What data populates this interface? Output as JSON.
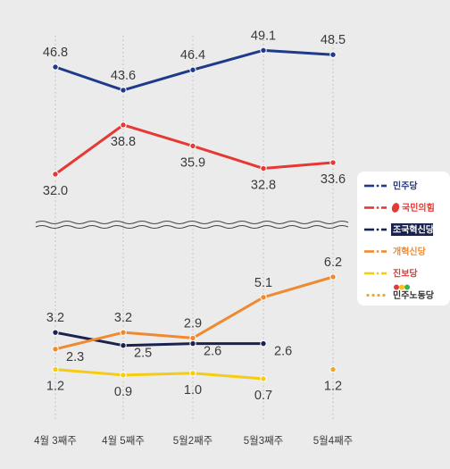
{
  "chart_data": {
    "type": "line",
    "categories": [
      "4월 3째주",
      "4월 5째주",
      "5월2째주",
      "5월3째주",
      "5월4째주"
    ],
    "axis_break": true,
    "grid": "vertical dotted lines",
    "legend_position": "right",
    "series": [
      {
        "name": "민주당",
        "color": "#1f3a8a",
        "values": [
          46.8,
          43.6,
          46.4,
          49.1,
          48.5
        ],
        "labels": [
          "46.8",
          "43.6",
          "46.4",
          "49.1",
          "48.5"
        ],
        "label_pos": [
          "above",
          "above",
          "above",
          "above",
          "above"
        ]
      },
      {
        "name": "국민의힘",
        "color": "#e53935",
        "values": [
          32.0,
          38.8,
          35.9,
          32.8,
          33.6
        ],
        "labels": [
          "32.0",
          "38.8",
          "35.9",
          "32.8",
          "33.6"
        ],
        "label_pos": [
          "below",
          "below",
          "below",
          "below",
          "below"
        ]
      },
      {
        "name": "조국혁신당",
        "color": "#1a2350",
        "values": [
          3.2,
          2.5,
          2.6,
          2.6,
          null
        ],
        "labels": [
          "3.2",
          "2.5",
          "2.6",
          "2.6",
          null
        ],
        "label_pos": [
          "above",
          "right",
          "right",
          "right",
          null
        ]
      },
      {
        "name": "개혁신당",
        "color": "#f08a30",
        "values": [
          2.3,
          3.2,
          2.9,
          5.1,
          6.2
        ],
        "labels": [
          "2.3",
          "3.2",
          "2.9",
          "5.1",
          "6.2"
        ],
        "label_pos": [
          "right",
          "above",
          "above",
          "above",
          "above"
        ]
      },
      {
        "name": "진보당",
        "color": "#f6cc10",
        "values": [
          1.2,
          0.9,
          1.0,
          0.7,
          null
        ],
        "labels": [
          "1.2",
          "0.9",
          "1.0",
          "0.7",
          null
        ],
        "label_pos": [
          "below",
          "below",
          "below",
          "below",
          null
        ]
      },
      {
        "name": "민주노동당",
        "color": "#f5a623",
        "values": [
          null,
          null,
          null,
          null,
          1.2
        ],
        "labels": [
          null,
          null,
          null,
          null,
          "1.2"
        ],
        "label_pos": [
          null,
          null,
          null,
          null,
          "below"
        ]
      }
    ]
  },
  "legend": [
    {
      "label": "민주당",
      "color": "#1f3a8a",
      "style": "dashdot",
      "label_color": "#1f3a8a",
      "icon": "text-logo"
    },
    {
      "label": "국민의힘",
      "color": "#e53935",
      "style": "dashdot",
      "label_color": "#e53935",
      "icon": "red-blob-logo"
    },
    {
      "label": "조국혁신당",
      "color": "#1a2350",
      "style": "dashdot",
      "label_color": "#ffffff",
      "icon": "navy-box-logo"
    },
    {
      "label": "개혁신당",
      "color": "#f08a30",
      "style": "dashdot",
      "label_color": "#f08a30",
      "icon": "text-logo"
    },
    {
      "label": "진보당",
      "color": "#f6cc10",
      "style": "dashdot",
      "label_color": "#e53935",
      "icon": "text-logo"
    },
    {
      "label": "민주노동당",
      "color": "#f5a623",
      "style": "dot",
      "label_color": "#333333",
      "icon": "three-circles-logo"
    }
  ]
}
